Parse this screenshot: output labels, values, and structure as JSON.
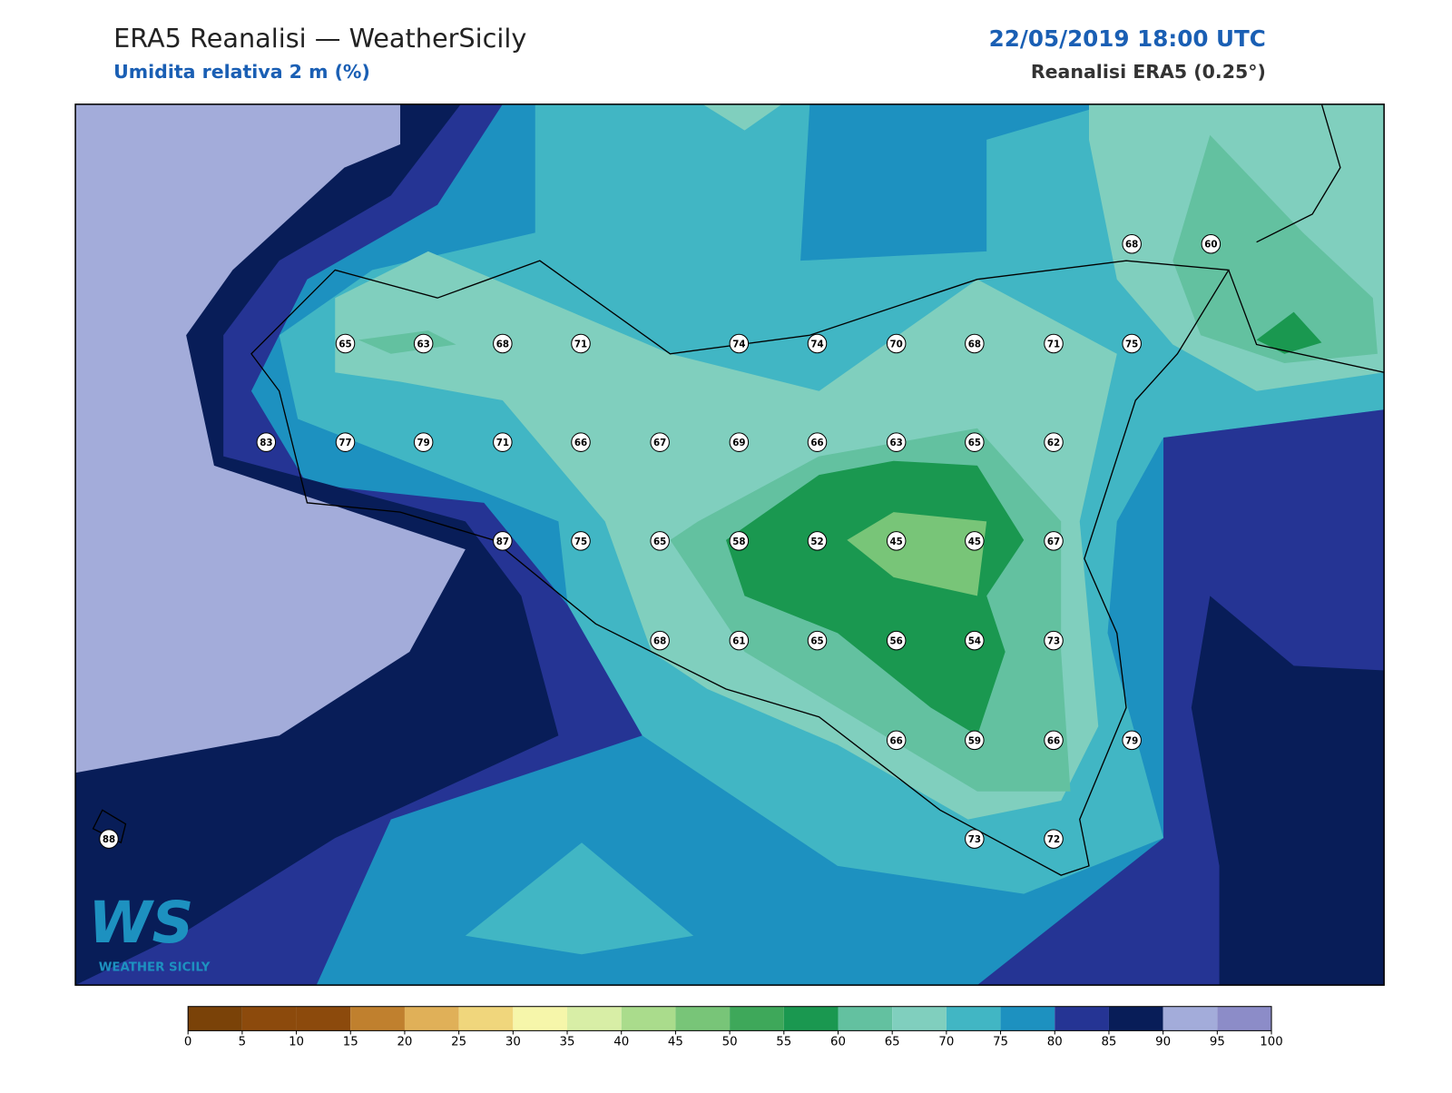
{
  "header": {
    "title": "ERA5 Reanalisi — WeatherSicily",
    "subtitle": "Umidita relativa 2 m (%)",
    "datetime": "22/05/2019 18:00 UTC",
    "source": "Reanalisi ERA5 (0.25°)"
  },
  "stations": [
    65,
    63,
    68,
    71,
    74,
    74,
    70,
    68,
    71,
    75,
    83,
    77,
    79,
    71,
    66,
    67,
    69,
    66,
    63,
    65,
    62,
    87,
    75,
    65,
    58,
    52,
    45,
    45,
    67,
    68,
    61,
    65,
    56,
    54,
    73,
    66,
    59,
    66,
    79,
    88,
    73,
    72,
    68,
    60
  ],
  "colorbar": {
    "ticks": [
      0,
      5,
      10,
      15,
      20,
      25,
      30,
      35,
      40,
      45,
      50,
      55,
      60,
      65,
      70,
      75,
      80,
      85,
      90,
      95,
      100
    ],
    "colors": [
      "#7a4208",
      "#8c4a0c",
      "#8c4a0c",
      "#c0802e",
      "#e0b058",
      "#f0d67c",
      "#f6f6aa",
      "#d8eea6",
      "#aadc8c",
      "#78c578",
      "#3ea85a",
      "#1a9850",
      "#63c1a0",
      "#80cfbe",
      "#41b6c4",
      "#1d91c0",
      "#253494",
      "#081d58",
      "#a3acda",
      "#8c8cc8"
    ]
  },
  "logo": {
    "text": "WS",
    "caption": "WEATHER SICILY"
  }
}
